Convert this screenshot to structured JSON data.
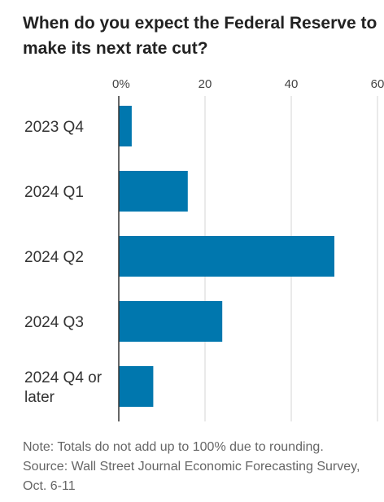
{
  "chart_data": {
    "type": "bar",
    "orientation": "horizontal",
    "title": "When do you expect the Federal Reserve to make its next rate cut?",
    "categories": [
      "2023 Q4",
      "2024 Q1",
      "2024 Q2",
      "2024 Q3",
      "2024 Q4 or later"
    ],
    "values": [
      3,
      16,
      50,
      24,
      8
    ],
    "tick_labels": [
      "0%",
      "20",
      "40",
      "60"
    ],
    "xlim": [
      0,
      60
    ],
    "xlabel": "",
    "ylabel": "",
    "grid": true,
    "legend": "none",
    "note": "Note: Totals do not add up to 100% due to rounding.",
    "source": "Source: Wall Street Journal Economic Forecasting Survey, Oct. 6-11"
  },
  "colors": {
    "bar": "#0077ae",
    "grid": "#d6d6d6",
    "axis": "#333333",
    "title": "#222222",
    "text": "#333333",
    "note": "#666666"
  }
}
